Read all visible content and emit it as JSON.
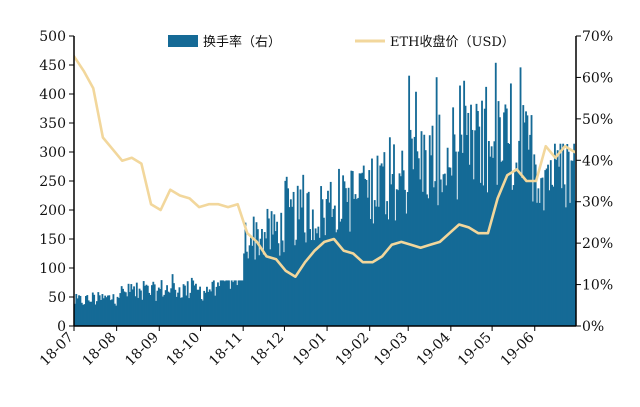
{
  "chart_data": {
    "type": "bar+line",
    "title": "",
    "xlabel": "",
    "ylabel_left": "",
    "ylabel_right": "",
    "x_tick_labels": [
      "18-07",
      "18-08",
      "18-09",
      "18-10",
      "18-11",
      "18-12",
      "19-01",
      "19-02",
      "19-03",
      "19-04",
      "19-05",
      "19-06"
    ],
    "left_axis": {
      "range": [
        0,
        500
      ],
      "ticks": [
        "0",
        "50",
        "100",
        "150",
        "200",
        "250",
        "300",
        "350",
        "400",
        "450",
        "500"
      ]
    },
    "right_axis": {
      "range": [
        0,
        70
      ],
      "unit": "%",
      "ticks": [
        "0%",
        "10%",
        "20%",
        "30%",
        "40%",
        "50%",
        "60%",
        "70%"
      ]
    },
    "legend": {
      "placement": "top",
      "entries": [
        "换手率（右）",
        "ETH收盘价（USD）"
      ]
    },
    "colors": {
      "bar": "#156a96",
      "line": "#f2d79c",
      "axis": "#000000"
    },
    "series": [
      {
        "name": "换手率（右）",
        "kind": "bar",
        "axis": "right",
        "unit": "%",
        "months": [
          "18-07",
          "18-08",
          "18-09",
          "18-10",
          "18-11",
          "18-12",
          "19-01",
          "19-02",
          "19-03",
          "19-04",
          "19-05",
          "19-06"
        ],
        "monthly_typical": [
          6,
          8,
          9,
          8,
          21,
          26,
          30,
          34,
          39,
          42,
          44,
          38
        ],
        "monthly_peak": [
          9,
          13,
          14,
          11,
          29,
          38,
          40,
          47,
          62,
          60,
          68,
          44
        ]
      },
      {
        "name": "ETH收盘价（USD）",
        "kind": "line",
        "axis": "left",
        "unit": "USD",
        "x": [
          "2018-07-01",
          "2018-07-08",
          "2018-07-15",
          "2018-07-22",
          "2018-07-29",
          "2018-08-05",
          "2018-08-12",
          "2018-08-19",
          "2018-08-26",
          "2018-09-02",
          "2018-09-09",
          "2018-09-16",
          "2018-09-23",
          "2018-09-30",
          "2018-10-07",
          "2018-10-14",
          "2018-10-21",
          "2018-10-28",
          "2018-11-04",
          "2018-11-11",
          "2018-11-18",
          "2018-11-25",
          "2018-12-02",
          "2018-12-09",
          "2018-12-16",
          "2018-12-23",
          "2018-12-30",
          "2019-01-06",
          "2019-01-13",
          "2019-01-20",
          "2019-01-27",
          "2019-02-03",
          "2019-02-10",
          "2019-02-17",
          "2019-02-24",
          "2019-03-03",
          "2019-03-10",
          "2019-03-17",
          "2019-03-24",
          "2019-03-31",
          "2019-04-07",
          "2019-04-14",
          "2019-04-21",
          "2019-04-28",
          "2019-05-05",
          "2019-05-12",
          "2019-05-19",
          "2019-05-26",
          "2019-06-02",
          "2019-06-09",
          "2019-06-16",
          "2019-06-23",
          "2019-06-30"
        ],
        "values": [
          465,
          440,
          410,
          325,
          305,
          285,
          290,
          280,
          210,
          200,
          235,
          225,
          220,
          205,
          210,
          210,
          205,
          210,
          160,
          145,
          120,
          115,
          95,
          85,
          110,
          130,
          145,
          150,
          130,
          125,
          110,
          110,
          120,
          140,
          145,
          140,
          135,
          140,
          145,
          160,
          175,
          170,
          160,
          160,
          220,
          260,
          270,
          250,
          250,
          310,
          290,
          310,
          300
        ]
      }
    ]
  }
}
